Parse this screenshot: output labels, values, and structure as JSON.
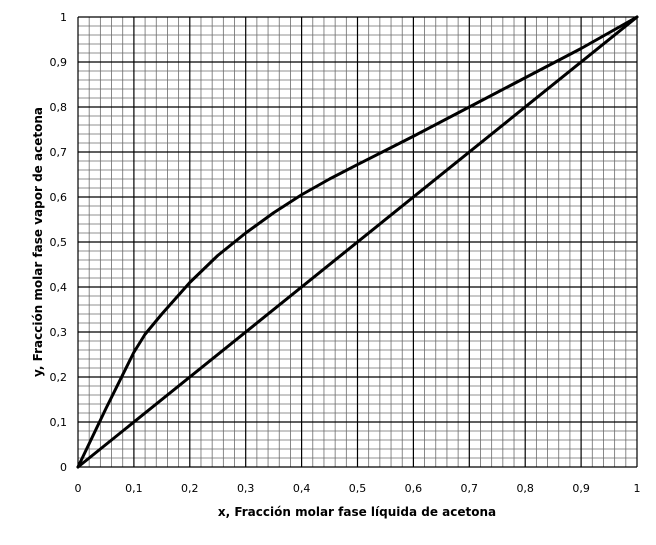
{
  "chart_data": {
    "type": "line",
    "title": "",
    "xlabel": "x, Fracción molar fase líquida de acetona",
    "ylabel": "y, Fracción molar fase vapor de acetona",
    "xlim": [
      0,
      1
    ],
    "ylim": [
      0,
      1
    ],
    "grid": true,
    "minor_grid_step": 0.02,
    "major_grid_step": 0.1,
    "x_tick_labels": [
      "0",
      "0,1",
      "0,2",
      "0,3",
      "0,4",
      "0,5",
      "0,6",
      "0,7",
      "0,8",
      "0,9",
      "1"
    ],
    "y_tick_labels": [
      "0",
      "0,1",
      "0,2",
      "0,3",
      "0,4",
      "0,5",
      "0,6",
      "0,7",
      "0,8",
      "0,9",
      "1"
    ],
    "series": [
      {
        "values": [
          [
            0,
            0
          ],
          [
            0.05,
            0.13
          ],
          [
            0.1,
            0.255
          ],
          [
            0.12,
            0.295
          ],
          [
            0.15,
            0.34
          ],
          [
            0.2,
            0.41
          ],
          [
            0.25,
            0.47
          ],
          [
            0.3,
            0.52
          ],
          [
            0.35,
            0.565
          ],
          [
            0.4,
            0.605
          ],
          [
            0.45,
            0.64
          ],
          [
            0.5,
            0.672
          ],
          [
            0.6,
            0.735
          ],
          [
            0.7,
            0.8
          ],
          [
            0.8,
            0.865
          ],
          [
            0.9,
            0.93
          ],
          [
            1,
            1
          ]
        ]
      },
      {
        "values": [
          [
            0,
            0
          ],
          [
            1,
            1
          ]
        ]
      }
    ],
    "colors": {
      "line": "#000000",
      "major_grid": "#000000",
      "minor_grid": "#6b6b6b"
    }
  }
}
